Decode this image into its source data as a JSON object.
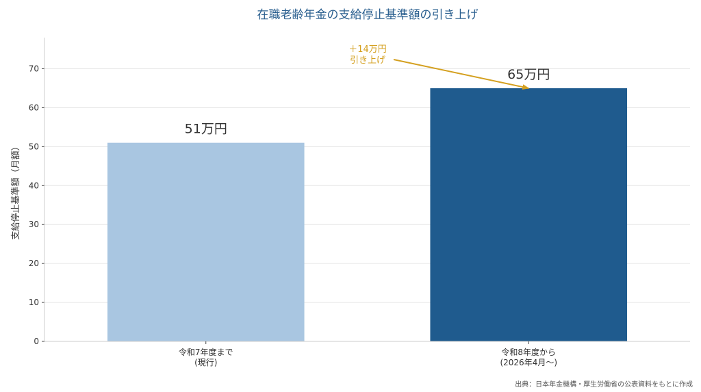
{
  "chart_data": {
    "type": "bar",
    "title": "在職老齢年金の支給停止基準額の引き上げ",
    "ylabel": "支給停止基準額（月額）",
    "xlabel": "",
    "ylim": [
      0,
      78
    ],
    "yticks": [
      0,
      10,
      20,
      30,
      40,
      50,
      60,
      70
    ],
    "grid": true,
    "categories": [
      [
        "令和7年度まで",
        "(現行)"
      ],
      [
        "令和8年度から",
        "(2026年4月〜)"
      ]
    ],
    "values": [
      51,
      65
    ],
    "value_labels": [
      "51万円",
      "65万円"
    ],
    "colors": [
      "#a9c6e1",
      "#1f5b8e"
    ],
    "annotation": {
      "lines": [
        "＋14万円",
        "引き上げ"
      ],
      "color": "#d4a020",
      "target_bar": 1
    },
    "source": "出典：日本年金機構・厚生労働省の公表資料をもとに作成"
  }
}
